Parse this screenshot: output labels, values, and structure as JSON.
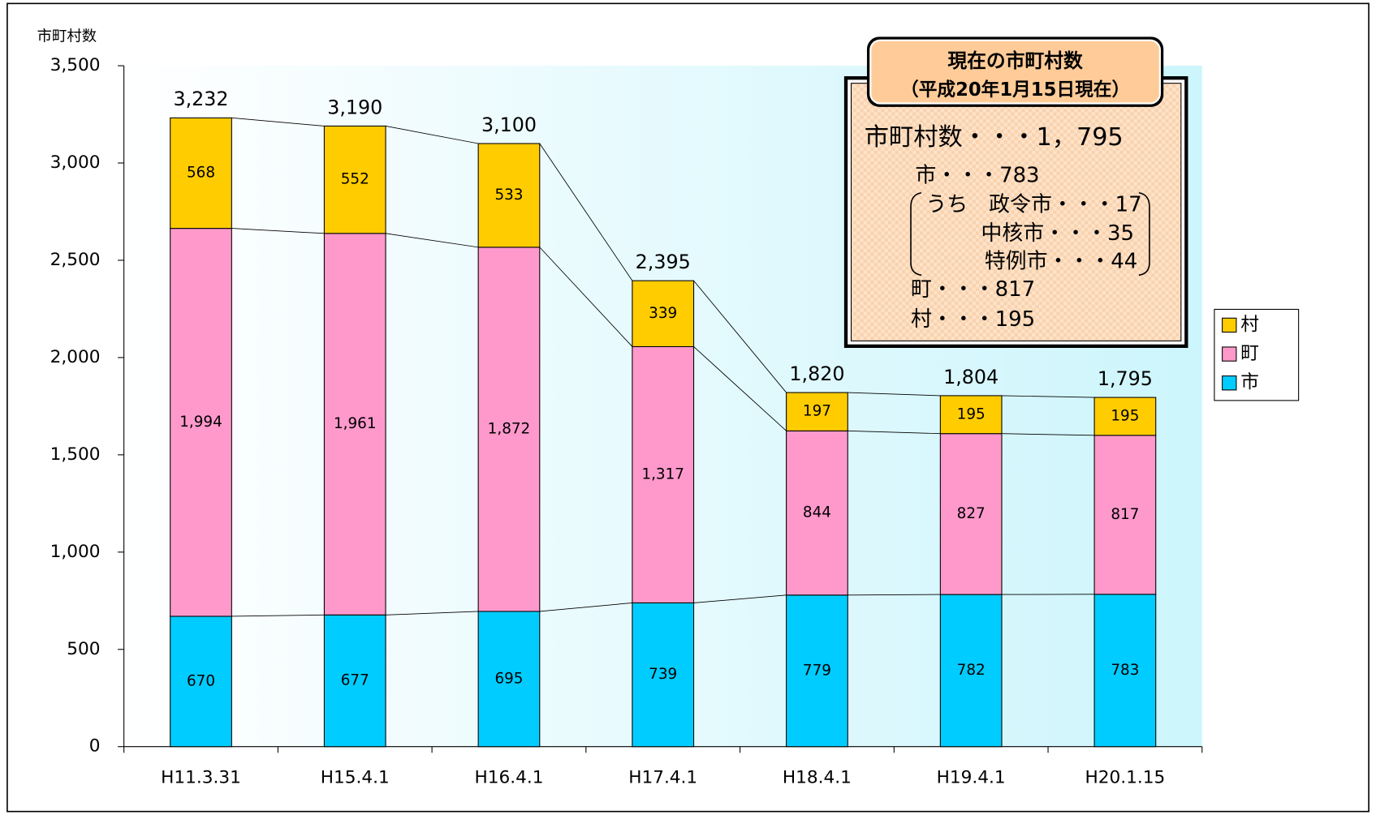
{
  "chart_data": {
    "type": "stacked_bar",
    "y_label": "市町村数",
    "categories": [
      "H11.3.31",
      "H15.4.1",
      "H16.4.1",
      "H17.4.1",
      "H18.4.1",
      "H19.4.1",
      "H20.1.15"
    ],
    "series": [
      {
        "name": "市",
        "color": "#00ccff",
        "values": [
          670,
          677,
          695,
          739,
          779,
          782,
          783
        ]
      },
      {
        "name": "町",
        "color": "#ff99cc",
        "values": [
          1994,
          1961,
          1872,
          1317,
          844,
          827,
          817
        ],
        "value_labels": [
          "1,994",
          "1,961",
          "1,872",
          "1,317",
          "844",
          "827",
          "817"
        ]
      },
      {
        "name": "村",
        "color": "#ffcc00",
        "values": [
          568,
          552,
          533,
          339,
          197,
          195,
          195
        ]
      }
    ],
    "totals": [
      3232,
      3190,
      3100,
      2395,
      1820,
      1804,
      1795
    ],
    "total_labels": [
      "3,232",
      "3,190",
      "3,100",
      "2,395",
      "1,820",
      "1,804",
      "1,795"
    ],
    "ylim": [
      0,
      3500
    ],
    "yticks": [
      0,
      500,
      {
        "value": 1000,
        "label": "1,000"
      },
      {
        "value": 1500,
        "label": "1,500"
      },
      {
        "value": 2000,
        "label": "2,000"
      },
      {
        "value": 2500,
        "label": "2,500"
      },
      {
        "value": 3000,
        "label": "3,000"
      },
      {
        "value": 3500,
        "label": "3,500"
      }
    ],
    "legend": "right",
    "annotation": {
      "title": "現在の市町村数",
      "subtitle": "（平成20年1月15日現在）",
      "lines": [
        "市町村数・・・1，795",
        "市・・・783",
        "うち　政令市・・・17",
        "中核市・・・35",
        "特例市・・・44",
        "町・・・817",
        "村・・・195"
      ]
    }
  }
}
